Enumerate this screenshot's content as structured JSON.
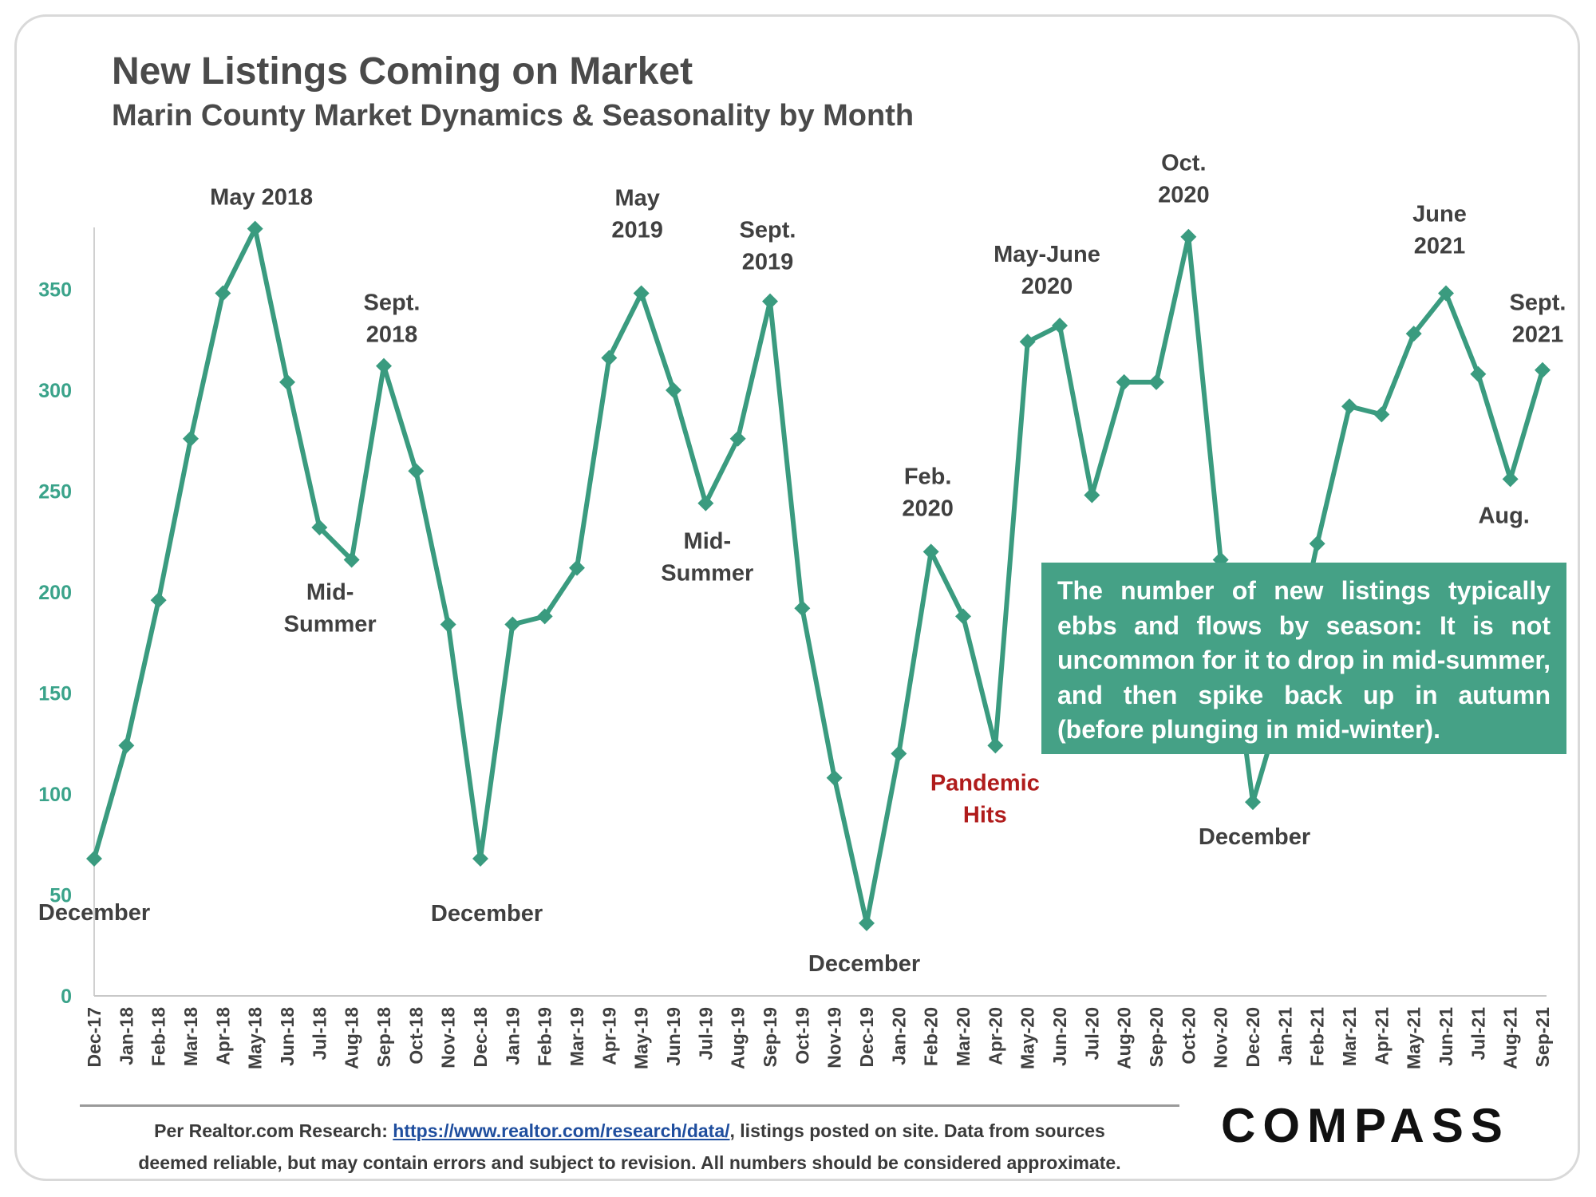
{
  "chart_data": {
    "type": "line",
    "title": "New Listings Coming on Market",
    "subtitle": "Marin County Market Dynamics & Seasonality by Month",
    "xlabel": "",
    "ylabel": "",
    "ylim": [
      0,
      380
    ],
    "yticks": [
      0,
      50,
      100,
      150,
      200,
      250,
      300,
      350
    ],
    "grid": false,
    "legend": "none",
    "line_color": "#3a9b7f",
    "categories": [
      "Dec-17",
      "Jan-18",
      "Feb-18",
      "Mar-18",
      "Apr-18",
      "May-18",
      "Jun-18",
      "Jul-18",
      "Aug-18",
      "Sep-18",
      "Oct-18",
      "Nov-18",
      "Dec-18",
      "Jan-19",
      "Feb-19",
      "Mar-19",
      "Apr-19",
      "May-19",
      "Jun-19",
      "Jul-19",
      "Aug-19",
      "Sep-19",
      "Oct-19",
      "Nov-19",
      "Dec-19",
      "Jan-20",
      "Feb-20",
      "Mar-20",
      "Apr-20",
      "May-20",
      "Jun-20",
      "Jul-20",
      "Aug-20",
      "Sep-20",
      "Oct-20",
      "Nov-20",
      "Dec-20",
      "Jan-21",
      "Feb-21",
      "Mar-21",
      "Apr-21",
      "May-21",
      "Jun-21",
      "Jul-21",
      "Aug-21",
      "Sep-21"
    ],
    "series": [
      {
        "name": "",
        "values": [
          68,
          124,
          196,
          276,
          348,
          380,
          304,
          232,
          216,
          312,
          260,
          184,
          68,
          184,
          188,
          212,
          316,
          348,
          300,
          244,
          276,
          344,
          192,
          108,
          36,
          120,
          220,
          188,
          124,
          324,
          332,
          248,
          304,
          304,
          376,
          216,
          96,
          150,
          224,
          292,
          288,
          328,
          348,
          308,
          256,
          310
        ]
      }
    ],
    "annotations": [
      {
        "lines": [
          "May 2018"
        ],
        "point": 5,
        "style": "dark"
      },
      {
        "lines": [
          "Sept.",
          "2018"
        ],
        "point": 9,
        "style": "dark"
      },
      {
        "lines": [
          "Mid-",
          "Summer"
        ],
        "point": 8,
        "style": "dark"
      },
      {
        "lines": [
          "December"
        ],
        "point": 0,
        "style": "dark"
      },
      {
        "lines": [
          "December"
        ],
        "point": 12,
        "style": "dark"
      },
      {
        "lines": [
          "May",
          "2019"
        ],
        "point": 17,
        "style": "dark"
      },
      {
        "lines": [
          "Sept.",
          "2019"
        ],
        "point": 21,
        "style": "dark"
      },
      {
        "lines": [
          "Mid-",
          "Summer"
        ],
        "point": 19,
        "style": "dark"
      },
      {
        "lines": [
          "December"
        ],
        "point": 24,
        "style": "dark"
      },
      {
        "lines": [
          "Feb.",
          "2020"
        ],
        "point": 26,
        "style": "dark"
      },
      {
        "lines": [
          "Pandemic",
          "Hits"
        ],
        "point": 28,
        "style": "red"
      },
      {
        "lines": [
          "May-June",
          "2020"
        ],
        "point": 30,
        "style": "dark"
      },
      {
        "lines": [
          "Oct.",
          "2020"
        ],
        "point": 34,
        "style": "dark"
      },
      {
        "lines": [
          "December"
        ],
        "point": 36,
        "style": "dark"
      },
      {
        "lines": [
          "June",
          "2021"
        ],
        "point": 42,
        "style": "dark"
      },
      {
        "lines": [
          "Sept.",
          "2021"
        ],
        "point": 45,
        "style": "dark"
      },
      {
        "lines": [
          "Aug."
        ],
        "point": 44,
        "style": "dark"
      }
    ],
    "callout": "The number of new listings typically ebbs and flows by season: It is not uncommon for it to drop in mid-summer, and then spike back up in autumn (before plunging in mid-winter).",
    "highlight_color": "#b01c1c",
    "callout_color": "#45a186"
  },
  "source": {
    "prefix": "Per Realtor.com Research: ",
    "link_text": "https://www.realtor.com/research/data/",
    "suffix": ", listings posted on site. Data from sources",
    "line2": "deemed reliable, but may contain errors and subject to revision. All numbers should be considered approximate."
  },
  "brand": {
    "logo": "COMPASS"
  }
}
